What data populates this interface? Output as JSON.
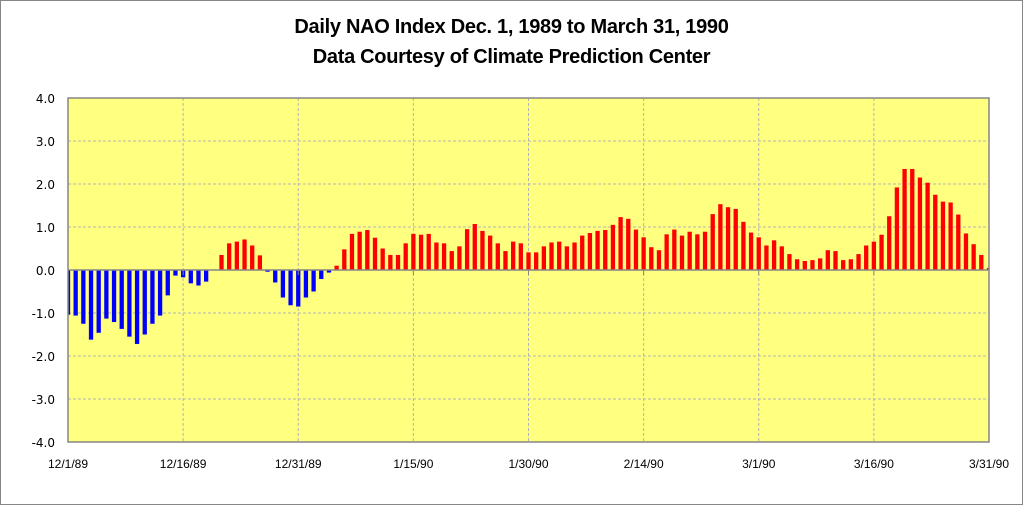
{
  "chart_data": {
    "type": "bar",
    "title": "Daily NAO Index Dec. 1, 1989 to March 31, 1990",
    "subtitle": "Data Courtesy of Climate Prediction Center",
    "xlabel": "",
    "ylabel": "",
    "ylim": [
      -4.0,
      4.0
    ],
    "yticks": [
      "4.0",
      "3.0",
      "2.0",
      "1.0",
      "0.0",
      "-1.0",
      "-2.0",
      "-3.0",
      "-4.0"
    ],
    "ytick_values": [
      4,
      3,
      2,
      1,
      0,
      -1,
      -2,
      -3,
      -4
    ],
    "xticks": [
      "12/1/89",
      "12/16/89",
      "12/31/89",
      "1/15/90",
      "1/30/90",
      "2/14/90",
      "3/1/90",
      "3/16/90",
      "3/31/90"
    ],
    "xtick_day_index": [
      0,
      15,
      30,
      45,
      60,
      75,
      90,
      105,
      120
    ],
    "start_date": "12/1/89",
    "end_date": "3/31/90",
    "grid": true,
    "legend": "none",
    "colors": {
      "positive": "#ff0000",
      "negative": "#0000ff",
      "plot_background": "#ffff80",
      "grid": "#b4b4b4",
      "axis": "#868686"
    },
    "series": [
      {
        "name": "Daily NAO Index",
        "values": [
          -1.04,
          -1.06,
          -1.25,
          -1.62,
          -1.46,
          -1.13,
          -1.21,
          -1.37,
          -1.55,
          -1.72,
          -1.5,
          -1.25,
          -1.06,
          -0.59,
          -0.13,
          -0.17,
          -0.31,
          -0.36,
          -0.27,
          0.0,
          0.35,
          0.62,
          0.66,
          0.71,
          0.57,
          0.34,
          -0.04,
          -0.29,
          -0.64,
          -0.82,
          -0.85,
          -0.64,
          -0.5,
          -0.21,
          -0.06,
          0.1,
          0.48,
          0.84,
          0.89,
          0.93,
          0.75,
          0.5,
          0.35,
          0.35,
          0.62,
          0.84,
          0.82,
          0.84,
          0.64,
          0.62,
          0.44,
          0.55,
          0.95,
          1.07,
          0.91,
          0.8,
          0.62,
          0.44,
          0.66,
          0.62,
          0.41,
          0.41,
          0.55,
          0.64,
          0.66,
          0.55,
          0.64,
          0.8,
          0.86,
          0.91,
          0.93,
          1.05,
          1.23,
          1.19,
          0.94,
          0.76,
          0.53,
          0.46,
          0.83,
          0.94,
          0.8,
          0.89,
          0.83,
          0.89,
          1.3,
          1.53,
          1.46,
          1.42,
          1.12,
          0.87,
          0.76,
          0.57,
          0.69,
          0.55,
          0.37,
          0.25,
          0.21,
          0.23,
          0.27,
          0.46,
          0.44,
          0.23,
          0.25,
          0.37,
          0.57,
          0.66,
          0.82,
          1.25,
          1.92,
          2.35,
          2.35,
          2.15,
          2.03,
          1.75,
          1.59,
          1.57,
          1.29,
          0.85,
          0.6,
          0.35,
          0.05
        ]
      }
    ]
  }
}
